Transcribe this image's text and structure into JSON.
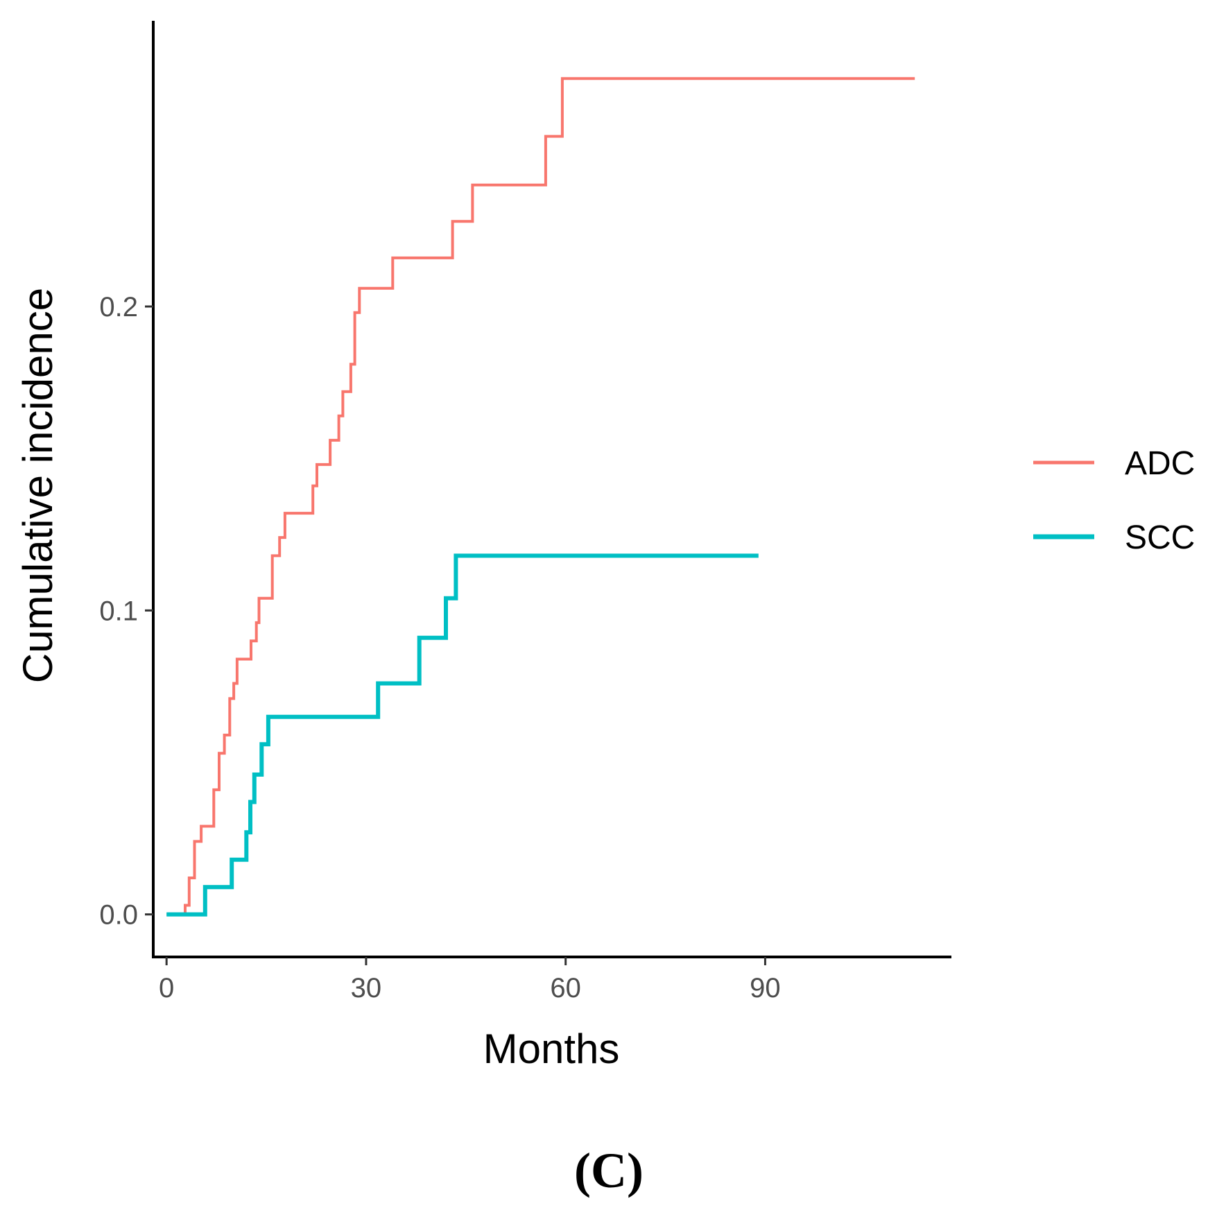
{
  "chart_data": {
    "type": "line",
    "step": true,
    "title": "",
    "panel_label": "(C)",
    "xlabel": "Months",
    "ylabel": "Cumulative incidence",
    "xlim": [
      -2,
      118
    ],
    "ylim": [
      -0.014,
      0.294
    ],
    "x_ticks": [
      0,
      30,
      60,
      90
    ],
    "y_ticks": [
      0.0,
      0.1,
      0.2
    ],
    "x_tick_labels": [
      "0",
      "30",
      "60",
      "90"
    ],
    "y_tick_labels": [
      "0.0",
      "0.1",
      "0.2"
    ],
    "grid": false,
    "legend_position": "right",
    "series": [
      {
        "name": "ADC",
        "color": "#F8766D",
        "points": [
          [
            0,
            0.0
          ],
          [
            2.8,
            0.0
          ],
          [
            2.8,
            0.003
          ],
          [
            3.4,
            0.003
          ],
          [
            3.4,
            0.012
          ],
          [
            4.2,
            0.012
          ],
          [
            4.2,
            0.024
          ],
          [
            5.2,
            0.024
          ],
          [
            5.2,
            0.029
          ],
          [
            7.1,
            0.029
          ],
          [
            7.1,
            0.041
          ],
          [
            7.9,
            0.041
          ],
          [
            7.9,
            0.053
          ],
          [
            8.7,
            0.053
          ],
          [
            8.7,
            0.059
          ],
          [
            9.5,
            0.059
          ],
          [
            9.5,
            0.071
          ],
          [
            10.1,
            0.071
          ],
          [
            10.1,
            0.076
          ],
          [
            10.6,
            0.076
          ],
          [
            10.6,
            0.084
          ],
          [
            12.7,
            0.084
          ],
          [
            12.7,
            0.09
          ],
          [
            13.5,
            0.09
          ],
          [
            13.5,
            0.096
          ],
          [
            13.9,
            0.096
          ],
          [
            13.9,
            0.104
          ],
          [
            15.9,
            0.104
          ],
          [
            15.9,
            0.118
          ],
          [
            17.0,
            0.118
          ],
          [
            17.0,
            0.124
          ],
          [
            17.8,
            0.124
          ],
          [
            17.8,
            0.132
          ],
          [
            22.0,
            0.132
          ],
          [
            22.0,
            0.141
          ],
          [
            22.6,
            0.141
          ],
          [
            22.6,
            0.148
          ],
          [
            24.6,
            0.148
          ],
          [
            24.6,
            0.156
          ],
          [
            25.9,
            0.156
          ],
          [
            25.9,
            0.164
          ],
          [
            26.5,
            0.164
          ],
          [
            26.5,
            0.172
          ],
          [
            27.7,
            0.172
          ],
          [
            27.7,
            0.181
          ],
          [
            28.3,
            0.181
          ],
          [
            28.3,
            0.198
          ],
          [
            29.0,
            0.198
          ],
          [
            29.0,
            0.206
          ],
          [
            34.0,
            0.206
          ],
          [
            34.0,
            0.216
          ],
          [
            43.0,
            0.216
          ],
          [
            43.0,
            0.228
          ],
          [
            46.0,
            0.228
          ],
          [
            46.0,
            0.24
          ],
          [
            57.0,
            0.24
          ],
          [
            57.0,
            0.256
          ],
          [
            59.5,
            0.256
          ],
          [
            59.5,
            0.275
          ],
          [
            112.5,
            0.275
          ]
        ]
      },
      {
        "name": "SCC",
        "color": "#00BFC4",
        "points": [
          [
            0,
            0.0
          ],
          [
            5.8,
            0.0
          ],
          [
            5.8,
            0.009
          ],
          [
            9.8,
            0.009
          ],
          [
            9.8,
            0.018
          ],
          [
            12.0,
            0.018
          ],
          [
            12.0,
            0.027
          ],
          [
            12.6,
            0.027
          ],
          [
            12.6,
            0.037
          ],
          [
            13.2,
            0.037
          ],
          [
            13.2,
            0.046
          ],
          [
            14.3,
            0.046
          ],
          [
            14.3,
            0.056
          ],
          [
            15.3,
            0.056
          ],
          [
            15.3,
            0.065
          ],
          [
            31.8,
            0.065
          ],
          [
            31.8,
            0.076
          ],
          [
            38.0,
            0.076
          ],
          [
            38.0,
            0.091
          ],
          [
            42.0,
            0.091
          ],
          [
            42.0,
            0.104
          ],
          [
            43.5,
            0.104
          ],
          [
            43.5,
            0.118
          ],
          [
            89.0,
            0.118
          ]
        ]
      }
    ]
  }
}
